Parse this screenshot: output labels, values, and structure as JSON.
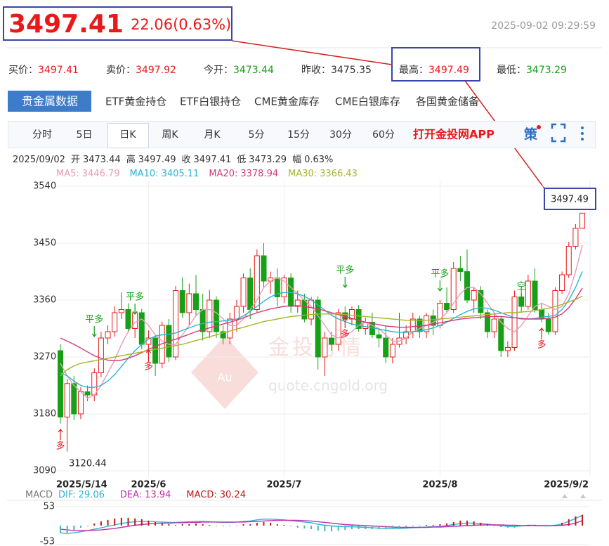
{
  "header": {
    "price": 3497.41,
    "change": "22.06(0.63%)",
    "time": "2025-09-02 09:29:59"
  },
  "quotes": [
    {
      "label": "买价：",
      "value": 3497.41,
      "color": "#e8191a"
    },
    {
      "label": "卖价：",
      "value": 3497.92,
      "color": "#e8191a"
    },
    {
      "label": "今开：",
      "value": 3473.44,
      "color": "#16a016"
    },
    {
      "label": "昨收：",
      "value": 3475.35,
      "color": "#333333"
    },
    {
      "label": "最高：",
      "value": 3497.49,
      "color": "#e8191a"
    },
    {
      "label": "最低：",
      "value": 3473.29,
      "color": "#16a016"
    }
  ],
  "tabs": [
    "贵金属数据",
    "ETF黄金持仓",
    "ETF白银持仓",
    "CME黄金库存",
    "CME白银库存",
    "各国黄金储备"
  ],
  "periods": [
    "分时",
    "5日",
    "日K",
    "周K",
    "月K",
    "5分",
    "15分",
    "30分",
    "60分"
  ],
  "promo": "打开金投网APP",
  "strategy_icon": "策",
  "info": {
    "date": "2025/09/02",
    "fields": [
      {
        "label": "开",
        "value": 3473.44
      },
      {
        "label": "高",
        "value": 3497.49
      },
      {
        "label": "收",
        "value": 3497.41
      },
      {
        "label": "低",
        "value": 3473.29
      },
      {
        "label": "幅",
        "value": "0.63%"
      }
    ]
  },
  "watermark": {
    "logo": "Au",
    "name": "金投行情",
    "url": "quote.cngold.org"
  },
  "chart_data": [
    {
      "type": "candlestick",
      "up_color": "#e8191a",
      "down_color": "#16a016",
      "grid": true,
      "categories": [
        "2025/5/14",
        null,
        null,
        null,
        null,
        null,
        null,
        null,
        null,
        null,
        null,
        null,
        null,
        "2025/6",
        null,
        null,
        null,
        null,
        null,
        null,
        null,
        null,
        null,
        null,
        null,
        null,
        null,
        null,
        null,
        null,
        null,
        null,
        null,
        "2025/7",
        null,
        null,
        null,
        null,
        null,
        null,
        null,
        null,
        null,
        null,
        null,
        null,
        null,
        null,
        null,
        null,
        null,
        null,
        null,
        null,
        null,
        null,
        "2025/8",
        null,
        null,
        null,
        null,
        null,
        null,
        null,
        null,
        null,
        null,
        null,
        null,
        null,
        null,
        null,
        null,
        null,
        null,
        null,
        null,
        "2025/9/2"
      ],
      "open": [
        3280,
        3175,
        3228,
        3180,
        3215,
        3210,
        3245,
        3300,
        3310,
        3340,
        3345,
        3315,
        3340,
        3290,
        3300,
        3260,
        3320,
        3270,
        3375,
        3340,
        3370,
        3345,
        3310,
        3360,
        3310,
        3300,
        3330,
        3350,
        3395,
        3345,
        3430,
        3390,
        3395,
        3365,
        3395,
        3350,
        3360,
        3330,
        3360,
        3270,
        3300,
        3290,
        3340,
        3330,
        3345,
        3315,
        3325,
        3305,
        3300,
        3270,
        3290,
        3300,
        3310,
        3330,
        3310,
        3335,
        3320,
        3355,
        3345,
        3410,
        3405,
        3360,
        3375,
        3340,
        3310,
        3330,
        3280,
        3285,
        3365,
        3350,
        3390,
        3345,
        3330,
        3310,
        3375,
        3400,
        3445,
        3473.44
      ],
      "high": [
        3290,
        3235,
        3240,
        3222,
        3225,
        3252,
        3310,
        3320,
        3350,
        3372,
        3355,
        3350,
        3346,
        3312,
        3306,
        3326,
        3330,
        3382,
        3396,
        3386,
        3400,
        3370,
        3376,
        3366,
        3320,
        3340,
        3360,
        3402,
        3410,
        3440,
        3450,
        3405,
        3410,
        3400,
        3402,
        3375,
        3370,
        3365,
        3366,
        3310,
        3310,
        3346,
        3350,
        3350,
        3352,
        3332,
        3340,
        3315,
        3320,
        3300,
        3340,
        3320,
        3340,
        3335,
        3340,
        3345,
        3360,
        3380,
        3420,
        3430,
        3440,
        3380,
        3382,
        3345,
        3340,
        3335,
        3295,
        3375,
        3380,
        3400,
        3410,
        3355,
        3340,
        3380,
        3405,
        3452,
        3480,
        3497.49
      ],
      "low": [
        3165,
        3120.44,
        3170,
        3172,
        3200,
        3200,
        3238,
        3290,
        3302,
        3330,
        3308,
        3300,
        3282,
        3262,
        3240,
        3252,
        3262,
        3265,
        3332,
        3320,
        3334,
        3296,
        3300,
        3300,
        3290,
        3290,
        3310,
        3340,
        3330,
        3340,
        3380,
        3370,
        3350,
        3355,
        3340,
        3340,
        3325,
        3320,
        3250,
        3240,
        3280,
        3280,
        3325,
        3320,
        3310,
        3305,
        3300,
        3285,
        3260,
        3260,
        3285,
        3290,
        3300,
        3300,
        3300,
        3305,
        3315,
        3340,
        3340,
        3390,
        3355,
        3340,
        3330,
        3300,
        3300,
        3270,
        3270,
        3280,
        3340,
        3345,
        3340,
        3325,
        3305,
        3305,
        3370,
        3395,
        3440,
        3473.29
      ],
      "close": [
        3175,
        3228,
        3180,
        3215,
        3210,
        3245,
        3300,
        3310,
        3340,
        3345,
        3315,
        3340,
        3290,
        3300,
        3260,
        3320,
        3270,
        3375,
        3340,
        3370,
        3345,
        3310,
        3360,
        3310,
        3300,
        3330,
        3350,
        3395,
        3345,
        3430,
        3390,
        3395,
        3365,
        3395,
        3350,
        3360,
        3330,
        3360,
        3270,
        3300,
        3290,
        3340,
        3330,
        3345,
        3315,
        3325,
        3305,
        3300,
        3270,
        3290,
        3300,
        3310,
        3330,
        3310,
        3335,
        3320,
        3355,
        3345,
        3410,
        3405,
        3360,
        3375,
        3340,
        3310,
        3330,
        3280,
        3285,
        3365,
        3350,
        3390,
        3345,
        3330,
        3310,
        3375,
        3400,
        3445,
        3473.44,
        3497.41
      ],
      "series": [
        {
          "name": "MA5:",
          "color": "#eb9bb6",
          "values": [
            3260,
            3240,
            3225,
            3215,
            3205,
            3210,
            3225,
            3245,
            3265,
            3290,
            3310,
            3325,
            3330,
            3320,
            3305,
            3295,
            3290,
            3290,
            3305,
            3320,
            3335,
            3345,
            3345,
            3340,
            3330,
            3320,
            3320,
            3330,
            3345,
            3360,
            3380,
            3390,
            3395,
            3390,
            3380,
            3370,
            3360,
            3350,
            3335,
            3320,
            3305,
            3300,
            3305,
            3310,
            3320,
            3325,
            3320,
            3315,
            3305,
            3295,
            3295,
            3300,
            3310,
            3315,
            3320,
            3325,
            3330,
            3340,
            3355,
            3370,
            3380,
            3380,
            3370,
            3355,
            3340,
            3325,
            3315,
            3310,
            3320,
            3335,
            3350,
            3355,
            3350,
            3345,
            3350,
            3370,
            3405,
            3446.79
          ]
        },
        {
          "name": "MA10:",
          "color": "#2cb4d4",
          "values": [
            3245,
            3240,
            3232,
            3225,
            3222,
            3222,
            3225,
            3232,
            3242,
            3255,
            3268,
            3280,
            3290,
            3298,
            3303,
            3305,
            3306,
            3308,
            3312,
            3316,
            3320,
            3323,
            3325,
            3326,
            3327,
            3328,
            3330,
            3335,
            3342,
            3350,
            3358,
            3365,
            3370,
            3372,
            3372,
            3370,
            3366,
            3360,
            3352,
            3344,
            3336,
            3330,
            3326,
            3322,
            3320,
            3318,
            3316,
            3314,
            3312,
            3310,
            3309,
            3309,
            3310,
            3311,
            3313,
            3316,
            3320,
            3325,
            3331,
            3337,
            3342,
            3346,
            3348,
            3347,
            3344,
            3340,
            3336,
            3332,
            3330,
            3330,
            3331,
            3333,
            3334,
            3336,
            3345,
            3360,
            3380,
            3405.11
          ]
        },
        {
          "name": "MA20:",
          "color": "#d63a78",
          "values": [
            3300,
            3295,
            3290,
            3284,
            3278,
            3272,
            3268,
            3265,
            3264,
            3265,
            3268,
            3272,
            3277,
            3282,
            3287,
            3291,
            3295,
            3298,
            3302,
            3306,
            3310,
            3313,
            3316,
            3319,
            3322,
            3325,
            3328,
            3332,
            3336,
            3340,
            3343,
            3346,
            3348,
            3350,
            3351,
            3351,
            3350,
            3348,
            3346,
            3343,
            3340,
            3337,
            3334,
            3331,
            3328,
            3325,
            3323,
            3321,
            3319,
            3318,
            3317,
            3317,
            3318,
            3319,
            3320,
            3322,
            3324,
            3326,
            3328,
            3330,
            3331,
            3332,
            3333,
            3334,
            3334,
            3334,
            3333,
            3332,
            3331,
            3330,
            3330,
            3330,
            3331,
            3333,
            3338,
            3348,
            3362,
            3378.94
          ]
        },
        {
          "name": "MA30:",
          "color": "#a5b52a",
          "values": [
            3240,
            3250,
            3256,
            3260,
            3262,
            3264,
            3266,
            3268,
            3270,
            3272,
            3274,
            3276,
            3278,
            3280,
            3282,
            3284,
            3286,
            3288,
            3290,
            3293,
            3296,
            3299,
            3302,
            3305,
            3308,
            3311,
            3314,
            3317,
            3320,
            3323,
            3326,
            3328,
            3330,
            3332,
            3334,
            3335,
            3336,
            3337,
            3338,
            3338,
            3338,
            3338,
            3337,
            3336,
            3335,
            3334,
            3333,
            3332,
            3331,
            3330,
            3329,
            3328,
            3328,
            3328,
            3328,
            3329,
            3330,
            3331,
            3332,
            3333,
            3334,
            3335,
            3336,
            3337,
            3338,
            3339,
            3340,
            3340,
            3341,
            3342,
            3343,
            3345,
            3347,
            3350,
            3353,
            3357,
            3361,
            3366.43
          ]
        }
      ],
      "ylim": [
        3090,
        3540
      ],
      "yticks": [
        3090,
        3180,
        3270,
        3360,
        3450,
        3540
      ],
      "annotations": [
        {
          "text": "多",
          "color": "#e8191a"
        },
        {
          "text": "平多",
          "color": "#16a016"
        },
        {
          "text": "平多",
          "color": "#16a016"
        },
        {
          "text": "多",
          "color": "#e8191a"
        },
        {
          "text": "平多",
          "color": "#16a016"
        },
        {
          "text": "多",
          "color": "#e8191a"
        },
        {
          "text": "平多",
          "color": "#16a016"
        },
        {
          "text": "空",
          "color": "#16a016"
        },
        {
          "text": "多",
          "color": "#e8191a"
        }
      ]
    },
    {
      "type": "macd",
      "title": "MACD",
      "ylim": [
        -53,
        53
      ],
      "yticks": [
        53,
        -53
      ],
      "series": [
        {
          "name": "DIF:",
          "color": "#2cb4d4",
          "values": [
            -20,
            -22,
            -20,
            -17,
            -14,
            -10,
            -6,
            -2,
            2,
            6,
            9,
            11,
            12,
            12,
            11,
            10,
            9,
            9,
            10,
            11,
            12,
            12,
            11,
            10,
            9,
            9,
            10,
            12,
            13,
            16,
            18,
            18,
            17,
            16,
            14,
            12,
            10,
            8,
            4,
            1,
            -1,
            -2,
            -3,
            -3,
            -4,
            -5,
            -6,
            -7,
            -8,
            -8,
            -8,
            -7,
            -6,
            -5,
            -4,
            -3,
            -2,
            0,
            3,
            6,
            7,
            7,
            6,
            4,
            2,
            0,
            -2,
            -2,
            -1,
            1,
            1,
            0,
            -1,
            1,
            5,
            12,
            20,
            29.06
          ]
        },
        {
          "name": "DEA:",
          "color": "#c030b0",
          "values": [
            -10,
            -12,
            -14,
            -14,
            -14,
            -13,
            -12,
            -10,
            -8,
            -5,
            -2,
            1,
            3,
            5,
            6,
            7,
            7,
            8,
            8,
            9,
            9,
            10,
            10,
            10,
            10,
            10,
            10,
            10,
            11,
            12,
            13,
            14,
            15,
            15,
            15,
            15,
            14,
            13,
            11,
            9,
            7,
            5,
            3,
            2,
            1,
            0,
            -1,
            -2,
            -3,
            -4,
            -5,
            -5,
            -5,
            -5,
            -5,
            -4,
            -4,
            -3,
            -2,
            -1,
            0,
            1,
            2,
            2,
            2,
            2,
            1,
            1,
            0,
            0,
            0,
            0,
            0,
            0,
            1,
            3,
            7,
            13.94
          ]
        },
        {
          "name": "MACD:",
          "color": "#c01818",
          "neg_color": "#3cbfae",
          "values": [
            -20,
            -20,
            -12,
            -6,
            0,
            6,
            12,
            16,
            20,
            22,
            22,
            20,
            18,
            14,
            10,
            6,
            4,
            2,
            4,
            4,
            6,
            4,
            2,
            0,
            -2,
            -2,
            0,
            4,
            4,
            8,
            10,
            8,
            4,
            2,
            -2,
            -6,
            -8,
            -10,
            -14,
            -16,
            -16,
            -14,
            -12,
            -10,
            -10,
            -10,
            -10,
            -10,
            -10,
            -8,
            -6,
            -4,
            -2,
            0,
            2,
            2,
            4,
            6,
            10,
            14,
            14,
            12,
            8,
            4,
            0,
            -4,
            -6,
            -6,
            -2,
            2,
            2,
            0,
            -2,
            2,
            8,
            18,
            26,
            30.24
          ]
        }
      ]
    }
  ]
}
